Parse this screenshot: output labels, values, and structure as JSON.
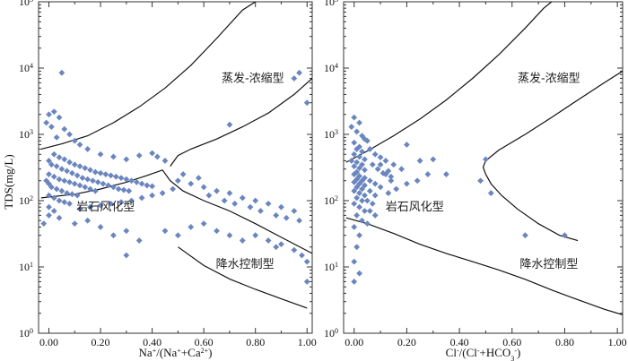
{
  "shared_ylabel": "TDS(mg/L)",
  "y_ticks": [
    {
      "base": "10",
      "exp": "0"
    },
    {
      "base": "10",
      "exp": "1"
    },
    {
      "base": "10",
      "exp": "2"
    },
    {
      "base": "10",
      "exp": "3"
    },
    {
      "base": "10",
      "exp": "4"
    },
    {
      "base": "10",
      "exp": "5"
    }
  ],
  "x_ticks": [
    "0.00",
    "0.20",
    "0.40",
    "0.60",
    "0.80",
    "1.00"
  ],
  "annotations": {
    "evaporation": "蒸发-浓缩型",
    "rock": "岩石风化型",
    "precip": "降水控制型"
  },
  "chart_data": [
    {
      "type": "scatter",
      "xlabel_parts": [
        {
          "t": "Na",
          "sup": false
        },
        {
          "t": "+",
          "sup": true
        },
        {
          "t": "/(Na",
          "sup": false
        },
        {
          "t": "+",
          "sup": true
        },
        {
          "t": "+Ca",
          "sup": false
        },
        {
          "t": "2+",
          "sup": true
        },
        {
          "t": ")",
          "sup": false
        }
      ],
      "ylabel": "TDS(mg/L)",
      "xlim": [
        -0.04,
        1.02
      ],
      "ylim": [
        1,
        100000
      ],
      "y_scale": "log",
      "marker_color": "#6b86bf",
      "boundary_upper": [
        [
          -0.03,
          600
        ],
        [
          0.05,
          720
        ],
        [
          0.15,
          950
        ],
        [
          0.25,
          1500
        ],
        [
          0.35,
          2600
        ],
        [
          0.45,
          5000
        ],
        [
          0.55,
          11000
        ],
        [
          0.65,
          28000
        ],
        [
          0.75,
          75000
        ],
        [
          0.8,
          100000
        ]
      ],
      "boundary_lower_left": [
        [
          -0.03,
          110
        ],
        [
          0.1,
          125
        ],
        [
          0.2,
          150
        ],
        [
          0.3,
          190
        ],
        [
          0.38,
          240
        ],
        [
          0.44,
          290
        ],
        [
          0.47,
          200
        ],
        [
          0.52,
          140
        ],
        [
          0.6,
          100
        ],
        [
          0.7,
          70
        ],
        [
          0.8,
          45
        ],
        [
          0.9,
          28
        ],
        [
          1.02,
          16
        ]
      ],
      "boundary_outer": [
        [
          0.47,
          330
        ],
        [
          0.5,
          480
        ],
        [
          0.55,
          600
        ],
        [
          0.65,
          850
        ],
        [
          0.75,
          1300
        ],
        [
          0.85,
          2100
        ],
        [
          0.95,
          4000
        ],
        [
          1.02,
          7000
        ]
      ],
      "boundary_bottom": [
        [
          0.5,
          20
        ],
        [
          0.6,
          10.5
        ],
        [
          0.7,
          6.6
        ],
        [
          0.8,
          4.6
        ],
        [
          0.9,
          3.3
        ],
        [
          1.0,
          2.4
        ]
      ],
      "points": [
        [
          0.05,
          8500
        ],
        [
          0.97,
          8500
        ],
        [
          0.95,
          7000
        ],
        [
          1.0,
          3000
        ],
        [
          0.7,
          1400
        ],
        [
          0.0,
          2000
        ],
        [
          0.02,
          2200
        ],
        [
          0.04,
          1800
        ],
        [
          -0.01,
          1500
        ],
        [
          0.01,
          1300
        ],
        [
          0.06,
          1200
        ],
        [
          0.08,
          1000
        ],
        [
          0.03,
          900
        ],
        [
          0.1,
          800
        ],
        [
          0.12,
          700
        ],
        [
          0.15,
          600
        ],
        [
          0.2,
          500
        ],
        [
          0.25,
          460
        ],
        [
          0.3,
          420
        ],
        [
          0.35,
          480
        ],
        [
          0.4,
          520
        ],
        [
          0.45,
          400
        ],
        [
          0.42,
          460
        ],
        [
          0.02,
          500
        ],
        [
          0.04,
          450
        ],
        [
          0.06,
          420
        ],
        [
          0.08,
          380
        ],
        [
          0.1,
          350
        ],
        [
          0.12,
          330
        ],
        [
          0.14,
          310
        ],
        [
          0.16,
          290
        ],
        [
          0.18,
          270
        ],
        [
          0.2,
          260
        ],
        [
          0.22,
          250
        ],
        [
          0.24,
          240
        ],
        [
          0.26,
          230
        ],
        [
          0.28,
          220
        ],
        [
          0.3,
          210
        ],
        [
          0.32,
          200
        ],
        [
          0.34,
          190
        ],
        [
          0.36,
          180
        ],
        [
          0.38,
          170
        ],
        [
          0.4,
          165
        ],
        [
          0.0,
          400
        ],
        [
          0.01,
          350
        ],
        [
          0.03,
          330
        ],
        [
          0.05,
          300
        ],
        [
          0.07,
          280
        ],
        [
          0.09,
          260
        ],
        [
          0.11,
          240
        ],
        [
          0.13,
          220
        ],
        [
          0.15,
          210
        ],
        [
          0.17,
          200
        ],
        [
          0.19,
          190
        ],
        [
          0.21,
          180
        ],
        [
          0.23,
          170
        ],
        [
          0.25,
          160
        ],
        [
          0.27,
          150
        ],
        [
          0.29,
          145
        ],
        [
          0.31,
          140
        ],
        [
          0.0,
          250
        ],
        [
          0.02,
          230
        ],
        [
          0.04,
          210
        ],
        [
          0.06,
          200
        ],
        [
          0.08,
          190
        ],
        [
          0.1,
          180
        ],
        [
          0.12,
          170
        ],
        [
          0.14,
          160
        ],
        [
          0.16,
          150
        ],
        [
          0.18,
          140
        ],
        [
          -0.01,
          200
        ],
        [
          0.0,
          180
        ],
        [
          0.01,
          160
        ],
        [
          0.03,
          150
        ],
        [
          0.05,
          140
        ],
        [
          0.07,
          130
        ],
        [
          0.09,
          125
        ],
        [
          0.11,
          120
        ],
        [
          0.0,
          120
        ],
        [
          0.02,
          110
        ],
        [
          0.04,
          100
        ],
        [
          0.06,
          95
        ],
        [
          0.08,
          90
        ],
        [
          0.0,
          80
        ],
        [
          0.02,
          70
        ],
        [
          -0.02,
          45
        ],
        [
          0.0,
          60
        ],
        [
          0.04,
          55
        ],
        [
          0.1,
          45
        ],
        [
          0.15,
          50
        ],
        [
          0.2,
          40
        ],
        [
          0.25,
          30
        ],
        [
          0.3,
          35
        ],
        [
          0.35,
          25
        ],
        [
          0.45,
          35
        ],
        [
          0.5,
          30
        ],
        [
          0.55,
          40
        ],
        [
          0.6,
          45
        ],
        [
          0.65,
          35
        ],
        [
          0.7,
          30
        ],
        [
          0.75,
          25
        ],
        [
          0.8,
          30
        ],
        [
          0.85,
          25
        ],
        [
          0.88,
          20
        ],
        [
          0.9,
          22
        ],
        [
          0.95,
          18
        ],
        [
          0.98,
          15
        ],
        [
          1.0,
          12
        ],
        [
          1.0,
          6
        ],
        [
          0.3,
          15
        ],
        [
          0.5,
          200
        ],
        [
          0.55,
          180
        ],
        [
          0.6,
          160
        ],
        [
          0.65,
          140
        ],
        [
          0.7,
          130
        ],
        [
          0.75,
          110
        ],
        [
          0.8,
          100
        ],
        [
          0.85,
          90
        ],
        [
          0.9,
          80
        ],
        [
          0.95,
          70
        ],
        [
          0.52,
          250
        ],
        [
          0.58,
          220
        ],
        [
          0.62,
          120
        ],
        [
          0.68,
          100
        ],
        [
          0.72,
          90
        ],
        [
          0.78,
          80
        ],
        [
          0.82,
          70
        ],
        [
          0.88,
          60
        ],
        [
          0.92,
          55
        ],
        [
          0.97,
          50
        ],
        [
          0.48,
          150
        ],
        [
          0.44,
          130
        ],
        [
          0.4,
          120
        ],
        [
          0.36,
          110
        ],
        [
          0.32,
          100
        ],
        [
          0.28,
          95
        ],
        [
          0.24,
          90
        ],
        [
          0.2,
          85
        ],
        [
          0.16,
          80
        ],
        [
          0.12,
          75
        ]
      ]
    },
    {
      "type": "scatter",
      "xlabel_parts": [
        {
          "t": "Cl",
          "sup": false
        },
        {
          "t": "-",
          "sup": true
        },
        {
          "t": "/(Cl",
          "sup": false
        },
        {
          "t": "-",
          "sup": true
        },
        {
          "t": "+HCO",
          "sup": false
        },
        {
          "t": "3",
          "sub": true
        },
        {
          "t": "-",
          "sup": true
        },
        {
          "t": ")",
          "sup": false
        }
      ],
      "ylabel": "",
      "xlim": [
        -0.04,
        1.02
      ],
      "ylim": [
        1,
        100000
      ],
      "y_scale": "log",
      "marker_color": "#6b86bf",
      "boundary_upper": [
        [
          -0.03,
          380
        ],
        [
          0.05,
          560
        ],
        [
          0.15,
          950
        ],
        [
          0.25,
          1700
        ],
        [
          0.35,
          3300
        ],
        [
          0.45,
          7000
        ],
        [
          0.55,
          16000
        ],
        [
          0.65,
          40000
        ],
        [
          0.72,
          80000
        ],
        [
          0.75,
          100000
        ]
      ],
      "boundary_lower_left": [
        [
          -0.03,
          55
        ],
        [
          0.05,
          45
        ],
        [
          0.15,
          32
        ],
        [
          0.25,
          22
        ],
        [
          0.35,
          16
        ],
        [
          0.45,
          12
        ],
        [
          0.55,
          9
        ],
        [
          0.65,
          6.5
        ],
        [
          0.75,
          4.5
        ],
        [
          0.85,
          3.2
        ],
        [
          0.95,
          2.3
        ],
        [
          1.02,
          1.9
        ]
      ],
      "boundary_outer": [
        [
          0.5,
          250
        ],
        [
          0.49,
          320
        ],
        [
          0.5,
          400
        ],
        [
          0.55,
          580
        ],
        [
          0.65,
          1000
        ],
        [
          0.75,
          1800
        ],
        [
          0.85,
          3300
        ],
        [
          0.95,
          6000
        ],
        [
          1.02,
          9000
        ]
      ],
      "boundary_bottom": [
        [
          0.5,
          250
        ],
        [
          0.52,
          180
        ],
        [
          0.56,
          120
        ],
        [
          0.62,
          75
        ],
        [
          0.7,
          45
        ],
        [
          0.78,
          30
        ],
        [
          0.85,
          25
        ]
      ],
      "points": [
        [
          0.0,
          1800
        ],
        [
          0.02,
          1500
        ],
        [
          -0.01,
          1300
        ],
        [
          0.01,
          1100
        ],
        [
          0.03,
          950
        ],
        [
          0.04,
          850
        ],
        [
          0.0,
          750
        ],
        [
          0.02,
          650
        ],
        [
          0.01,
          600
        ],
        [
          0.03,
          550
        ],
        [
          0.0,
          500
        ],
        [
          0.02,
          460
        ],
        [
          0.04,
          420
        ],
        [
          -0.01,
          400
        ],
        [
          0.01,
          380
        ],
        [
          0.03,
          350
        ],
        [
          0.0,
          330
        ],
        [
          0.02,
          310
        ],
        [
          0.04,
          290
        ],
        [
          0.01,
          270
        ],
        [
          0.0,
          250
        ],
        [
          0.02,
          235
        ],
        [
          0.04,
          220
        ],
        [
          0.01,
          210
        ],
        [
          0.03,
          200
        ],
        [
          0.0,
          190
        ],
        [
          0.02,
          180
        ],
        [
          0.04,
          170
        ],
        [
          0.01,
          160
        ],
        [
          0.03,
          150
        ],
        [
          0.0,
          140
        ],
        [
          0.02,
          130
        ],
        [
          0.04,
          120
        ],
        [
          0.01,
          110
        ],
        [
          0.03,
          100
        ],
        [
          0.0,
          90
        ],
        [
          0.02,
          80
        ],
        [
          0.04,
          70
        ],
        [
          0.01,
          60
        ],
        [
          0.03,
          50
        ],
        [
          0.0,
          40
        ],
        [
          0.02,
          30
        ],
        [
          0.01,
          20
        ],
        [
          0.0,
          12
        ],
        [
          0.02,
          8
        ],
        [
          0.0,
          6
        ],
        [
          0.05,
          800
        ],
        [
          0.06,
          600
        ],
        [
          0.08,
          500
        ],
        [
          0.1,
          450
        ],
        [
          0.12,
          400
        ],
        [
          0.07,
          350
        ],
        [
          0.09,
          300
        ],
        [
          0.11,
          260
        ],
        [
          0.14,
          230
        ],
        [
          0.06,
          200
        ],
        [
          0.08,
          180
        ],
        [
          0.1,
          160
        ],
        [
          0.06,
          140
        ],
        [
          0.08,
          120
        ],
        [
          0.05,
          100
        ],
        [
          0.07,
          90
        ],
        [
          0.06,
          70
        ],
        [
          0.08,
          60
        ],
        [
          0.05,
          45
        ],
        [
          0.15,
          350
        ],
        [
          0.18,
          300
        ],
        [
          0.2,
          700
        ],
        [
          0.25,
          400
        ],
        [
          0.3,
          420
        ],
        [
          0.28,
          250
        ],
        [
          0.24,
          200
        ],
        [
          0.2,
          180
        ],
        [
          0.16,
          150
        ],
        [
          0.13,
          130
        ],
        [
          0.1,
          350
        ],
        [
          0.13,
          280
        ],
        [
          0.12,
          250
        ],
        [
          0.14,
          200
        ],
        [
          0.5,
          420
        ],
        [
          0.48,
          200
        ],
        [
          0.52,
          130
        ],
        [
          0.65,
          30
        ],
        [
          0.8,
          30
        ],
        [
          0.35,
          250
        ]
      ]
    }
  ]
}
